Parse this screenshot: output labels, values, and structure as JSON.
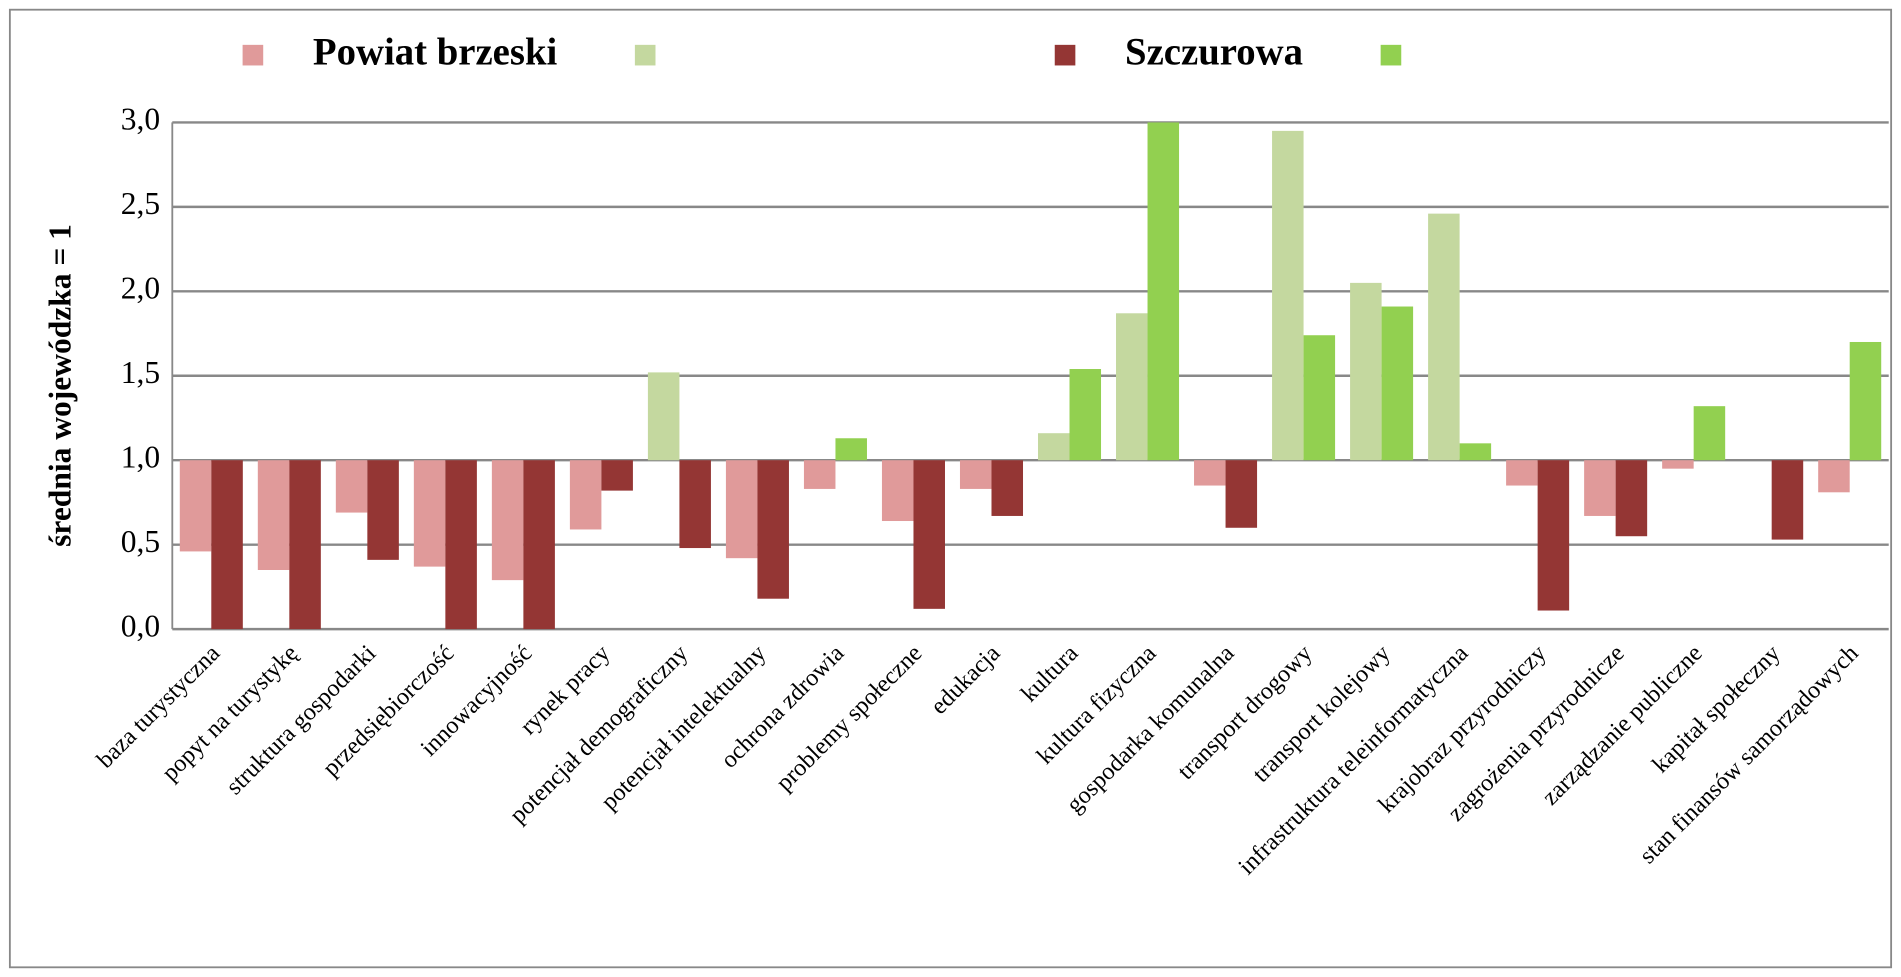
{
  "chart_data": {
    "type": "bar",
    "ylabel": "średnia wojewódzka = 1",
    "categories": [
      "baza turystyczna",
      "popyt na turystykę",
      "struktura gospodarki",
      "przedsiębiorczość",
      "innowacyjność",
      "rynek pracy",
      "potencjał demograficzny",
      "potencjał intelektualny",
      "ochrona zdrowia",
      "problemy społeczne",
      "edukacja",
      "kultura",
      "kultura fizyczna",
      "gospodarka komunalna",
      "transport drogowy",
      "transport kolejowy",
      "infrastruktura teleinformatyczna",
      "krajobraz przyrodniczy",
      "zagrożenia przyrodnicze",
      "zarządzanie publiczne",
      "kapitał społeczny",
      "stan finansów samorządowych"
    ],
    "series": [
      {
        "name": "Powiat brzeski",
        "color": "#e09a9a",
        "color_above": "#c4d89f",
        "values": [
          0.46,
          0.35,
          0.69,
          0.37,
          0.29,
          0.59,
          1.52,
          0.42,
          0.83,
          0.64,
          0.83,
          1.16,
          1.87,
          0.85,
          2.95,
          2.05,
          2.46,
          0.85,
          0.67,
          0.95,
          1.0,
          0.81
        ]
      },
      {
        "name": "Szczurowa",
        "color": "#943634",
        "color_above": "#92d050",
        "values": [
          0.0,
          0.0,
          0.41,
          0.0,
          0.0,
          0.82,
          0.48,
          0.18,
          1.13,
          0.12,
          0.67,
          1.54,
          3.0,
          0.6,
          1.74,
          1.91,
          1.1,
          0.11,
          0.55,
          1.32,
          0.53,
          1.7
        ]
      }
    ],
    "baseline": 1,
    "ylim": [
      0,
      3
    ],
    "yticks": [
      {
        "value": 0,
        "label": "0,0"
      },
      {
        "value": 0.5,
        "label": "0,5"
      },
      {
        "value": 1,
        "label": "1,0"
      },
      {
        "value": 1.5,
        "label": "1,5"
      },
      {
        "value": 2,
        "label": "2,0"
      },
      {
        "value": 2.5,
        "label": "2,5"
      },
      {
        "value": 3,
        "label": "3,0"
      }
    ],
    "grid": true
  }
}
